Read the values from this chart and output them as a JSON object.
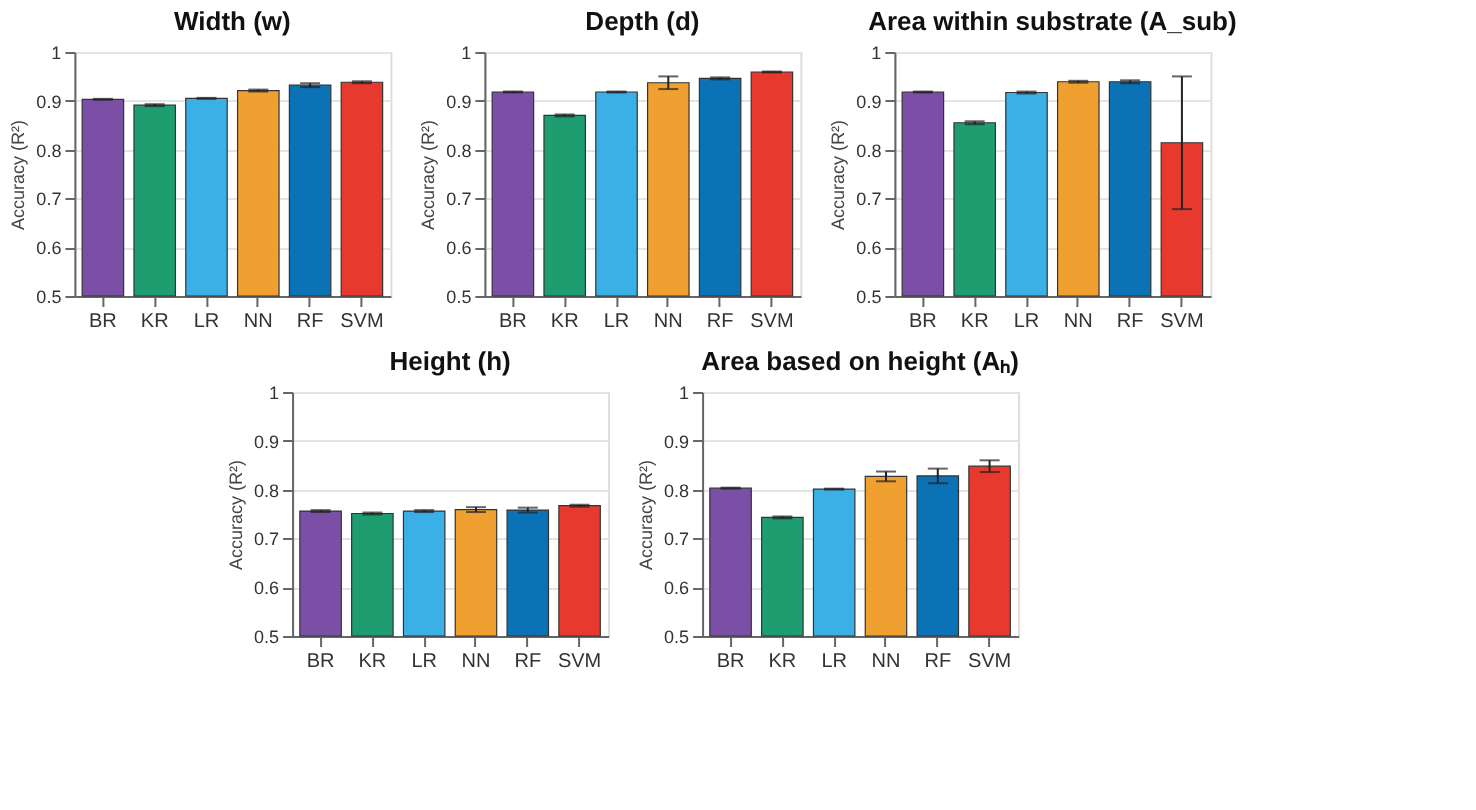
{
  "chart_data": [
    {
      "type": "bar",
      "title": "Width (w)",
      "ylabel": "Accuracy (R²)",
      "categories": [
        "BR",
        "KR",
        "LR",
        "NN",
        "RF",
        "SVM"
      ],
      "values": [
        0.903,
        0.891,
        0.905,
        0.921,
        0.932,
        0.938
      ],
      "errors": [
        0.001,
        0.002,
        0.001,
        0.002,
        0.004,
        0.002
      ],
      "colors": [
        "#7b4fa6",
        "#1e9e70",
        "#3bb0e6",
        "#f0a030",
        "#0a72b5",
        "#e8392e"
      ],
      "ylim": [
        0.5,
        1
      ],
      "yticks": [
        0.5,
        0.6,
        0.7,
        0.8,
        0.9,
        1
      ],
      "grid": "y"
    },
    {
      "type": "bar",
      "title": "Depth (d)",
      "ylabel": "Accuracy (R²)",
      "categories": [
        "BR",
        "KR",
        "LR",
        "NN",
        "RF",
        "SVM"
      ],
      "values": [
        0.918,
        0.87,
        0.918,
        0.937,
        0.946,
        0.959
      ],
      "errors": [
        0.001,
        0.002,
        0.001,
        0.013,
        0.002,
        0.001
      ],
      "colors": [
        "#7b4fa6",
        "#1e9e70",
        "#3bb0e6",
        "#f0a030",
        "#0a72b5",
        "#e8392e"
      ],
      "ylim": [
        0.5,
        1
      ],
      "yticks": [
        0.5,
        0.6,
        0.7,
        0.8,
        0.9,
        1
      ],
      "grid": "y"
    },
    {
      "type": "bar",
      "title": "Area within substrate (A_sub)",
      "ylabel": "Accuracy (R²)",
      "categories": [
        "BR",
        "KR",
        "LR",
        "NN",
        "RF",
        "SVM"
      ],
      "values": [
        0.918,
        0.855,
        0.917,
        0.939,
        0.939,
        0.814
      ],
      "errors": [
        0.001,
        0.003,
        0.002,
        0.002,
        0.003,
        [
          0.678,
          0.95
        ]
      ],
      "colors": [
        "#7b4fa6",
        "#1e9e70",
        "#3bb0e6",
        "#f0a030",
        "#0a72b5",
        "#e8392e"
      ],
      "ylim": [
        0.5,
        1
      ],
      "yticks": [
        0.5,
        0.6,
        0.7,
        0.8,
        0.9,
        1
      ],
      "grid": "y"
    },
    {
      "type": "bar",
      "title": "Height (h)",
      "ylabel": "Accuracy (R²)",
      "categories": [
        "BR",
        "KR",
        "LR",
        "NN",
        "RF",
        "SVM"
      ],
      "values": [
        0.756,
        0.751,
        0.756,
        0.759,
        0.758,
        0.767
      ],
      "errors": [
        0.002,
        0.002,
        0.002,
        0.005,
        0.005,
        0.002
      ],
      "colors": [
        "#7b4fa6",
        "#1e9e70",
        "#3bb0e6",
        "#f0a030",
        "#0a72b5",
        "#e8392e"
      ],
      "ylim": [
        0.5,
        1
      ],
      "yticks": [
        0.5,
        0.6,
        0.7,
        0.8,
        0.9,
        1
      ],
      "grid": "y"
    },
    {
      "type": "bar",
      "title": "Area based on height (Aₕ)",
      "ylabel": "Accuracy (R²)",
      "categories": [
        "BR",
        "KR",
        "LR",
        "NN",
        "RF",
        "SVM"
      ],
      "values": [
        0.803,
        0.743,
        0.801,
        0.827,
        0.828,
        0.848
      ],
      "errors": [
        0.001,
        0.002,
        0.001,
        0.01,
        0.015,
        0.012
      ],
      "colors": [
        "#7b4fa6",
        "#1e9e70",
        "#3bb0e6",
        "#f0a030",
        "#0a72b5",
        "#e8392e"
      ],
      "ylim": [
        0.5,
        1
      ],
      "yticks": [
        0.5,
        0.6,
        0.7,
        0.8,
        0.9,
        1
      ],
      "grid": "y"
    }
  ]
}
